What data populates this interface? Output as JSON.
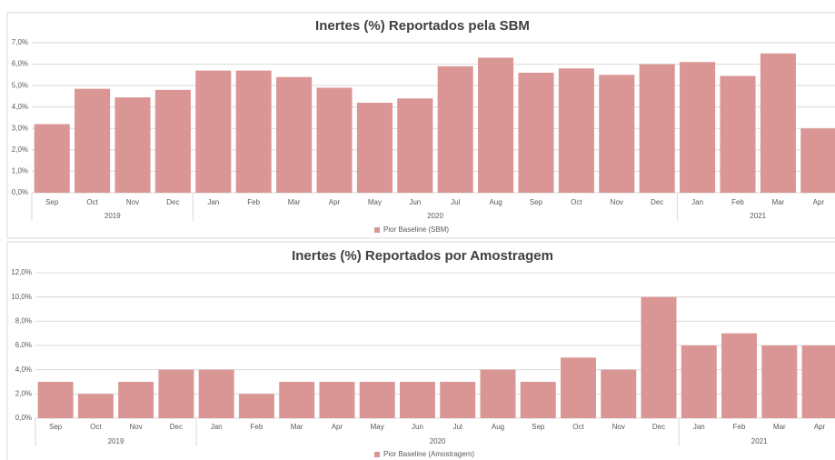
{
  "chart_data": [
    {
      "type": "bar",
      "title": "Inertes (%) Reportados pela SBM",
      "groups": [
        {
          "label": "2019",
          "categories": [
            "Sep",
            "Oct",
            "Nov",
            "Dec"
          ]
        },
        {
          "label": "2020",
          "categories": [
            "Jan",
            "Feb",
            "Mar",
            "Apr",
            "May",
            "Jun",
            "Jul",
            "Aug",
            "Sep",
            "Oct",
            "Nov",
            "Dec"
          ]
        },
        {
          "label": "2021",
          "categories": [
            "Jan",
            "Feb",
            "Mar",
            "Apr"
          ]
        }
      ],
      "series": [
        {
          "name": "Pior Baseline (SBM)",
          "color": "#d99694",
          "values": [
            3.2,
            4.85,
            4.45,
            4.8,
            5.7,
            5.7,
            5.4,
            4.9,
            4.2,
            4.4,
            5.9,
            6.3,
            5.6,
            5.8,
            5.5,
            6.0,
            6.1,
            5.45,
            6.5,
            3.0
          ]
        }
      ],
      "ylim": [
        0,
        7
      ],
      "yticks": [
        {
          "value": 0,
          "label": "0,0%"
        },
        {
          "value": 1,
          "label": "1,0%"
        },
        {
          "value": 2,
          "label": "2,0%"
        },
        {
          "value": 3,
          "label": "3,0%"
        },
        {
          "value": 4,
          "label": "4,0%"
        },
        {
          "value": 5,
          "label": "5,0%"
        },
        {
          "value": 6,
          "label": "6,0%"
        },
        {
          "value": 7,
          "label": "7,0%"
        }
      ],
      "grid": true,
      "legend": "bottom"
    },
    {
      "type": "bar",
      "title": "Inertes (%) Reportados por Amostragem",
      "groups": [
        {
          "label": "2019",
          "categories": [
            "Sep",
            "Oct",
            "Nov",
            "Dec"
          ]
        },
        {
          "label": "2020",
          "categories": [
            "Jan",
            "Feb",
            "Mar",
            "Apr",
            "May",
            "Jun",
            "Jul",
            "Aug",
            "Sep",
            "Oct",
            "Nov",
            "Dec"
          ]
        },
        {
          "label": "2021",
          "categories": [
            "Jan",
            "Feb",
            "Mar",
            "Apr"
          ]
        }
      ],
      "series": [
        {
          "name": "Pior Baseline (Amostragem)",
          "color": "#d99694",
          "values": [
            3,
            2,
            3,
            4,
            4,
            2,
            3,
            3,
            3,
            3,
            3,
            4,
            3,
            5,
            4,
            10,
            6,
            7,
            6,
            6
          ]
        }
      ],
      "ylim": [
        0,
        12
      ],
      "yticks": [
        {
          "value": 0,
          "label": "0,0%"
        },
        {
          "value": 2,
          "label": "2,0%"
        },
        {
          "value": 4,
          "label": "4,0%"
        },
        {
          "value": 6,
          "label": "6,0%"
        },
        {
          "value": 8,
          "label": "8,0%"
        },
        {
          "value": 10,
          "label": "10,0%"
        },
        {
          "value": 12,
          "label": "12,0%"
        }
      ],
      "grid": true,
      "legend": "bottom"
    }
  ]
}
